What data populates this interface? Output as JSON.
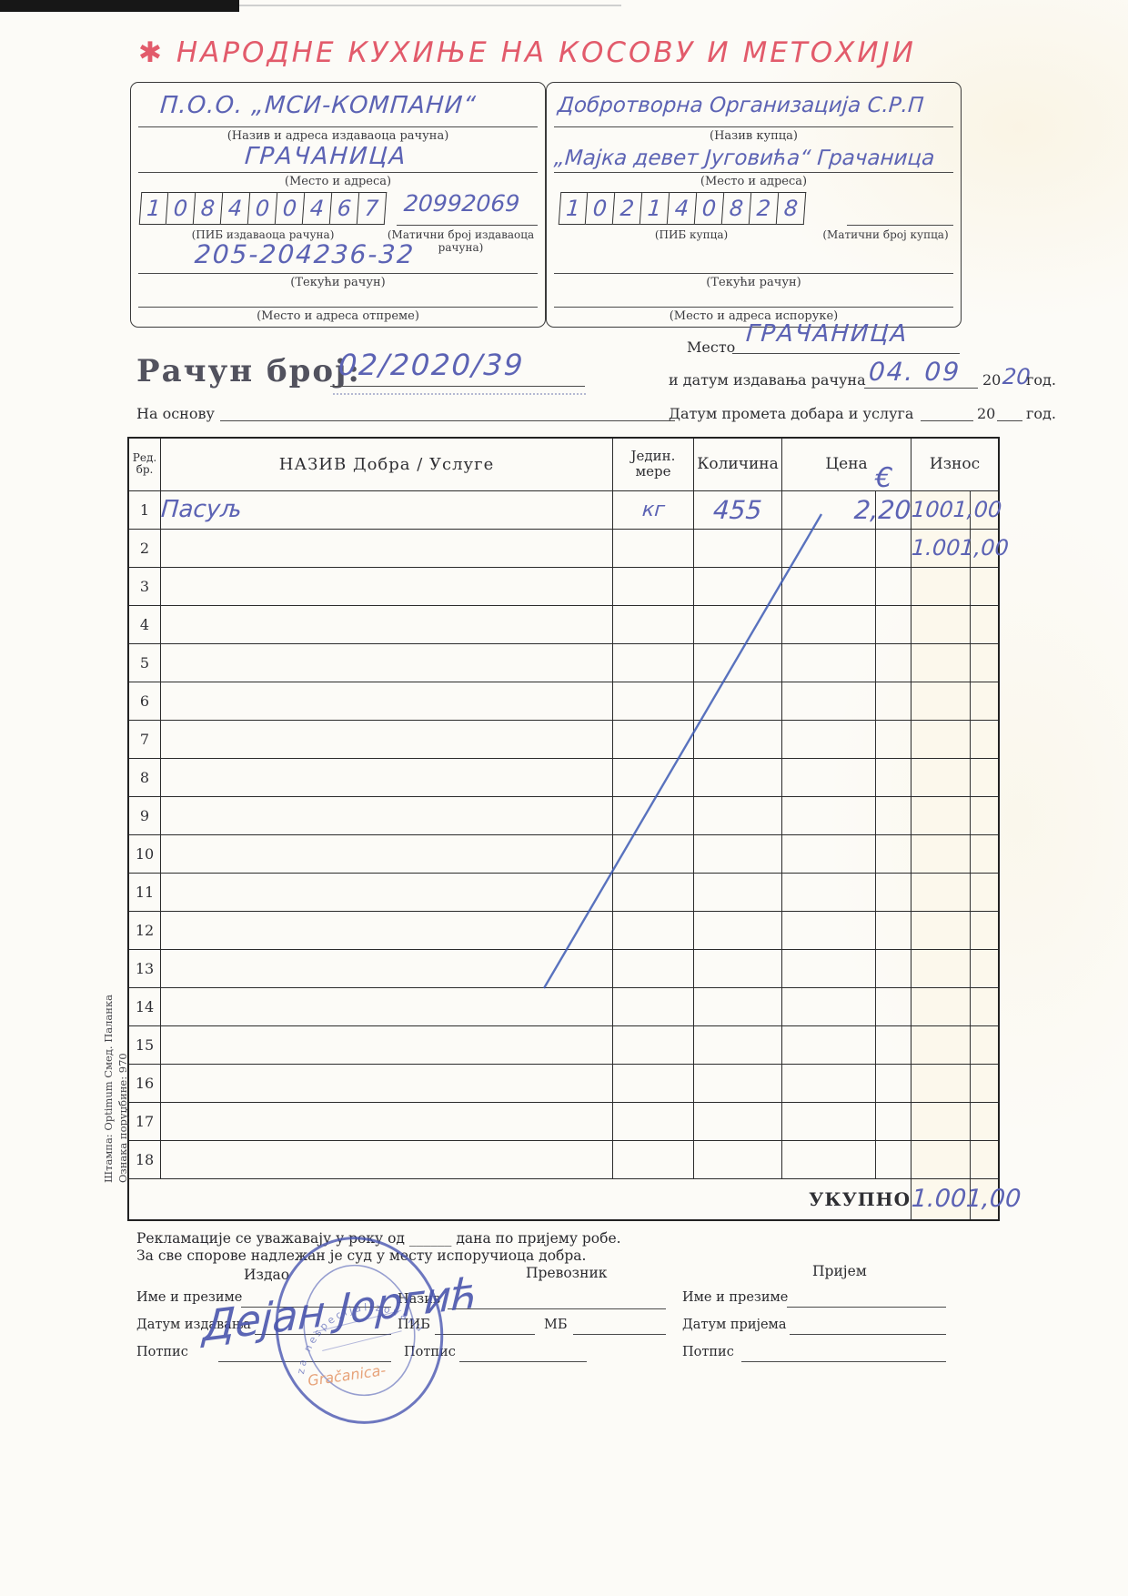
{
  "page": {
    "handwritten_title": "✱ НАРОДНЕ КУХИЊЕ НА КОСОВУ И МЕТОХИЈИ",
    "accent_red": "#e25b6b",
    "ink_blue": "#5c63b4"
  },
  "seller_box": {
    "name_value": "П.О.О. „МСИ-КОМПАНИ“",
    "name_label": "(Назив и адреса издаваоца рачуна)",
    "place_value": "ГРАЧАНИЦА",
    "place_label": "(Место и адреса)",
    "pib_value": "108400467",
    "pib_label": "(ПИБ издаваоца рачуна)",
    "reg_value": "20992069",
    "reg_label": "(Матични број издаваоца рачуна)",
    "account_value": "205-204236-32",
    "account_label": "(Текући рачун)",
    "dispatch_label": "(Место и адреса отпреме)"
  },
  "buyer_box": {
    "name_value": "Добротворна Организација С.Р.П",
    "name_label": "(Назив купца)",
    "place_value": "„Мајка девет Југовића“ Грачаница",
    "place_label": "(Место и адреса)",
    "pib_value": "102140828",
    "pib_label": "(ПИБ купца)",
    "reg_label": "(Матични број купца)",
    "account_label": "(Текући рачун)",
    "delivery_label": "(Место и адреса испоруке)"
  },
  "invoice": {
    "number_label": "Рачун број:",
    "number_value": "02/2020/39",
    "place_label": "Место",
    "place_value": "ГРАЧАНИЦА",
    "date_label": "и датум издавања рачуна",
    "date_value": "04. 09",
    "year_prefix": "20",
    "year_value_hw": "20",
    "year_suffix": "год.",
    "basis_label": "На основу",
    "turnover_label": "Датум промета добара и услуга",
    "turnover_year_prefix": "20",
    "turnover_year_suffix": "год."
  },
  "table": {
    "headers": {
      "row_no1": "Ред.",
      "row_no2": "бр.",
      "name": "НАЗИВ  Добра / Услуге",
      "unit1": "Једин.",
      "unit2": "мере",
      "qty": "Количина",
      "price": "Цена",
      "amount": "Износ"
    },
    "price_currency_note": "€",
    "rows": [
      {
        "no": "1",
        "name": "Пасуљ",
        "unit": "кг",
        "qty": "455",
        "price": "2,20",
        "amount": "1001,00"
      },
      {
        "no": "2",
        "name": "",
        "unit": "",
        "qty": "",
        "price": "",
        "amount": "1.001,00"
      },
      {
        "no": "3",
        "name": "",
        "unit": "",
        "qty": "",
        "price": "",
        "amount": ""
      },
      {
        "no": "4",
        "name": "",
        "unit": "",
        "qty": "",
        "price": "",
        "amount": ""
      },
      {
        "no": "5",
        "name": "",
        "unit": "",
        "qty": "",
        "price": "",
        "amount": ""
      },
      {
        "no": "6",
        "name": "",
        "unit": "",
        "qty": "",
        "price": "",
        "amount": ""
      },
      {
        "no": "7",
        "name": "",
        "unit": "",
        "qty": "",
        "price": "",
        "amount": ""
      },
      {
        "no": "8",
        "name": "",
        "unit": "",
        "qty": "",
        "price": "",
        "amount": ""
      },
      {
        "no": "9",
        "name": "",
        "unit": "",
        "qty": "",
        "price": "",
        "amount": ""
      },
      {
        "no": "10",
        "name": "",
        "unit": "",
        "qty": "",
        "price": "",
        "amount": ""
      },
      {
        "no": "11",
        "name": "",
        "unit": "",
        "qty": "",
        "price": "",
        "amount": ""
      },
      {
        "no": "12",
        "name": "",
        "unit": "",
        "qty": "",
        "price": "",
        "amount": ""
      },
      {
        "no": "13",
        "name": "",
        "unit": "",
        "qty": "",
        "price": "",
        "amount": ""
      },
      {
        "no": "14",
        "name": "",
        "unit": "",
        "qty": "",
        "price": "",
        "amount": ""
      },
      {
        "no": "15",
        "name": "",
        "unit": "",
        "qty": "",
        "price": "",
        "amount": ""
      },
      {
        "no": "16",
        "name": "",
        "unit": "",
        "qty": "",
        "price": "",
        "amount": ""
      },
      {
        "no": "17",
        "name": "",
        "unit": "",
        "qty": "",
        "price": "",
        "amount": ""
      },
      {
        "no": "18",
        "name": "",
        "unit": "",
        "qty": "",
        "price": "",
        "amount": ""
      }
    ],
    "total_label": "УКУПНО",
    "total_value": "1.001,00"
  },
  "footer": {
    "note1": "Рекламације се уважавају у року од ______ дана по пријему робе.",
    "note2": "За све спорове надлежан је суд у месту испоручиоца добра.",
    "issued": {
      "title": "Издао",
      "name_label": "Име и презиме",
      "signature_name": "Дејан Јоргић",
      "date_label": "Датум издавања",
      "sign_label": "Потпис"
    },
    "carrier": {
      "title": "Превозник",
      "name_label": "Назив",
      "pib_label": "ПИБ",
      "mb_label": "МБ",
      "sign_label": "Потпис"
    },
    "receipt": {
      "title": "Пријем",
      "name_label": "Име и презиме",
      "date_label": "Датум пријема",
      "sign_label": "Потпис"
    },
    "stamp": {
      "arc_text": "za nespecijalizovanu",
      "place_text": "Gračanica-",
      "color": "#4553b0",
      "place_color": "#e59a6d"
    }
  },
  "margin_info": {
    "order_code": "Ознака поруџбине: 970",
    "print_house": "Штампа: Optimum Смед. Паланка"
  }
}
